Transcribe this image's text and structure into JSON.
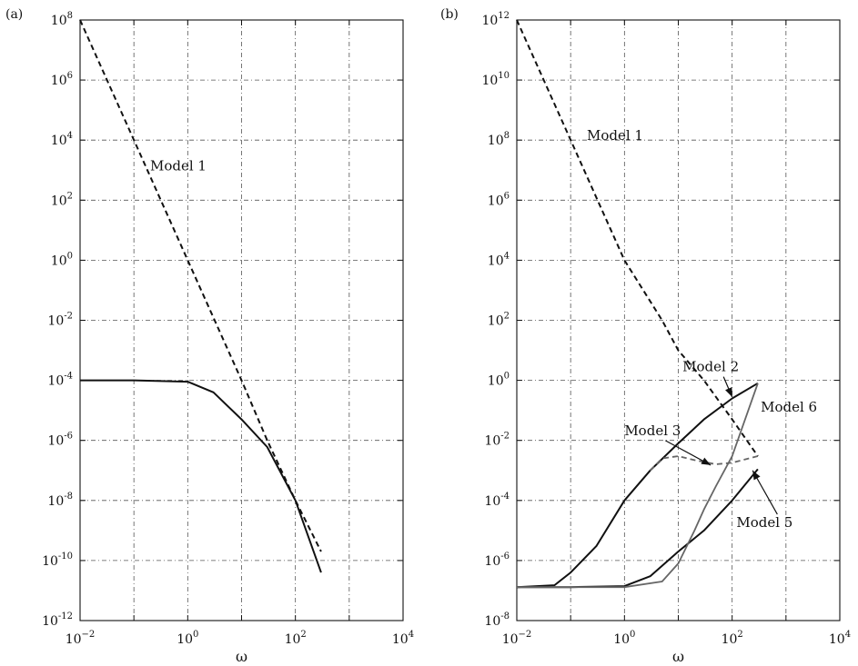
{
  "chart_data": [
    {
      "type": "line",
      "panel_label": "(a)",
      "xlabel": "ω",
      "ylabel": "",
      "x_scale": "log",
      "y_scale": "log",
      "xlim": [
        0.01,
        10000
      ],
      "ylim": [
        1e-12,
        100000000.0
      ],
      "x_ticks": [
        {
          "base": "10",
          "exp": "−2"
        },
        {
          "base": "10",
          "exp": "0"
        },
        {
          "base": "10",
          "exp": "2"
        },
        {
          "base": "10",
          "exp": "4"
        }
      ],
      "y_ticks": [
        {
          "base": "10",
          "exp": "8"
        },
        {
          "base": "10",
          "exp": "6"
        },
        {
          "base": "10",
          "exp": "4"
        },
        {
          "base": "10",
          "exp": "2"
        },
        {
          "base": "10",
          "exp": "0"
        },
        {
          "base": "10",
          "exp": "-2"
        },
        {
          "base": "10",
          "exp": "-4"
        },
        {
          "base": "10",
          "exp": "-6"
        },
        {
          "base": "10",
          "exp": "-8"
        },
        {
          "base": "10",
          "exp": "-10"
        },
        {
          "base": "10",
          "exp": "-12"
        }
      ],
      "grid": true,
      "series": [
        {
          "style": "dashed",
          "color": "#111111",
          "x": [
            0.01,
            0.1,
            1,
            10,
            30,
            100,
            300
          ],
          "y": [
            100000000.0,
            10000.0,
            1,
            0.0001,
            1e-06,
            1e-08,
            2e-10
          ]
        },
        {
          "style": "solid",
          "color": "#111111",
          "x": [
            0.01,
            0.1,
            1,
            3,
            10,
            30,
            100,
            300
          ],
          "y": [
            0.0001,
            0.0001,
            9e-05,
            4e-05,
            5e-06,
            6e-07,
            1e-08,
            4e-11
          ]
        }
      ],
      "annotations": [
        {
          "text": "Model 1",
          "x": 0.2,
          "y": 1000
        }
      ]
    },
    {
      "type": "line",
      "panel_label": "(b)",
      "xlabel": "ω",
      "ylabel": "",
      "x_scale": "log",
      "y_scale": "log",
      "xlim": [
        0.01,
        10000
      ],
      "ylim": [
        1e-08,
        1000000000000.0
      ],
      "x_ticks": [
        {
          "base": "10",
          "exp": "−2"
        },
        {
          "base": "10",
          "exp": "0"
        },
        {
          "base": "10",
          "exp": "2"
        },
        {
          "base": "10",
          "exp": "4"
        }
      ],
      "y_ticks": [
        {
          "base": "10",
          "exp": "12"
        },
        {
          "base": "10",
          "exp": "10"
        },
        {
          "base": "10",
          "exp": "8"
        },
        {
          "base": "10",
          "exp": "6"
        },
        {
          "base": "10",
          "exp": "4"
        },
        {
          "base": "10",
          "exp": "2"
        },
        {
          "base": "10",
          "exp": "0"
        },
        {
          "base": "10",
          "exp": "-2"
        },
        {
          "base": "10",
          "exp": "-4"
        },
        {
          "base": "10",
          "exp": "-6"
        },
        {
          "base": "10",
          "exp": "-8"
        }
      ],
      "grid": true,
      "series": [
        {
          "name": "Model 1",
          "style": "dashed",
          "color": "#111111",
          "x": [
            0.01,
            0.1,
            1,
            5,
            10,
            30,
            100,
            300
          ],
          "y": [
            1000000000000.0,
            100000000.0,
            10000.0,
            100.0,
            10,
            1,
            0.05,
            0.003
          ]
        },
        {
          "name": "Model 2",
          "style": "solid",
          "color": "#111111",
          "x": [
            0.01,
            0.05,
            0.1,
            0.3,
            1,
            3,
            10,
            30,
            100,
            300
          ],
          "y": [
            1.3e-07,
            1.5e-07,
            4e-07,
            3e-06,
            0.0001,
            0.001,
            0.008,
            0.05,
            0.25,
            0.8
          ]
        },
        {
          "name": "Model 3",
          "style": "dashed",
          "color": "#666666",
          "x": [
            3,
            5,
            10,
            20,
            50,
            100,
            300
          ],
          "y": [
            0.001,
            0.0025,
            0.003,
            0.0022,
            0.0016,
            0.0018,
            0.003
          ]
        },
        {
          "name": "Model 5",
          "style": "solid",
          "color": "#111111",
          "x": [
            0.01,
            0.1,
            1,
            3,
            10,
            30,
            100,
            300
          ],
          "y": [
            1.3e-07,
            1.3e-07,
            1.4e-07,
            3e-07,
            2e-06,
            1e-05,
            0.0001,
            0.0011
          ]
        },
        {
          "name": "Model 6",
          "style": "solid",
          "color": "#666666",
          "x": [
            0.01,
            0.1,
            1,
            5,
            10,
            20,
            30,
            50,
            100,
            300
          ],
          "y": [
            1.3e-07,
            1.3e-07,
            1.3e-07,
            2e-07,
            8e-07,
            1e-05,
            5e-05,
            0.0003,
            0.003,
            0.8
          ]
        }
      ],
      "annotations": [
        {
          "text": "Model 1",
          "x": 0.2,
          "y": 100000000.0
        },
        {
          "text": "Model 2",
          "x": 12,
          "y": 2,
          "arrow_to": [
            100,
            0.28
          ]
        },
        {
          "text": "Model 3",
          "x": 1,
          "y": 0.015,
          "arrow_to": [
            40,
            0.0015
          ]
        },
        {
          "text": "Model 6",
          "x": 340,
          "y": 0.09
        },
        {
          "text": "Model 5",
          "x": 120,
          "y": 1.3e-05,
          "arrow_to": [
            240,
            0.001
          ]
        }
      ]
    }
  ]
}
